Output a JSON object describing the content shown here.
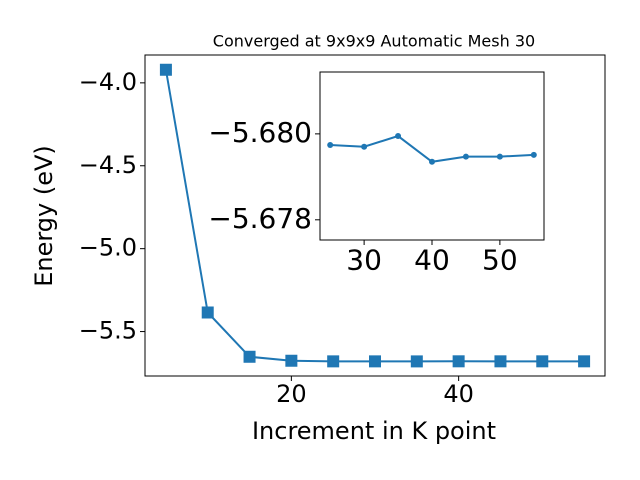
{
  "chart_data": [
    {
      "type": "line",
      "title": "Converged at 9x9x9 Automatic Mesh 30",
      "x_label": "Increment in K point",
      "y_label": "Energy (eV)",
      "x": [
        5,
        10,
        15,
        20,
        25,
        30,
        35,
        40,
        45,
        50,
        55
      ],
      "series": [
        {
          "color": "#1f77b4",
          "marker": "square",
          "values": [
            -3.921,
            -5.385,
            -5.652,
            -5.676,
            -5.6797,
            -5.6797,
            -5.6799,
            -5.6794,
            -5.6795,
            -5.6795,
            -5.6795
          ]
        }
      ],
      "xlim": [
        2.5,
        57.5
      ],
      "xticks": [
        20,
        40
      ],
      "ylim": [
        -5.768,
        -3.832
      ],
      "yticks": [
        {
          "value": -4.0,
          "label": "−4.0"
        },
        {
          "value": -4.5,
          "label": "−4.5"
        },
        {
          "value": -5.0,
          "label": "−5.0"
        },
        {
          "value": -5.5,
          "label": "−5.5"
        }
      ]
    },
    {
      "type": "line",
      "x": [
        25,
        30,
        35,
        40,
        45,
        50,
        55
      ],
      "series": [
        {
          "color": "#1f77b4",
          "marker": "circle",
          "values": [
            -5.67974,
            -5.6797,
            -5.67995,
            -5.67935,
            -5.67947,
            -5.67947,
            -5.67951
          ]
        }
      ],
      "xlim": [
        23.5,
        56.5
      ],
      "xticks": [
        30,
        40,
        50
      ],
      "ylim": [
        -5.67753,
        -5.68144
      ],
      "yticks": [
        {
          "value": -5.68,
          "label": "−5.680"
        },
        {
          "value": -5.678,
          "label": "−5.678"
        }
      ]
    }
  ]
}
